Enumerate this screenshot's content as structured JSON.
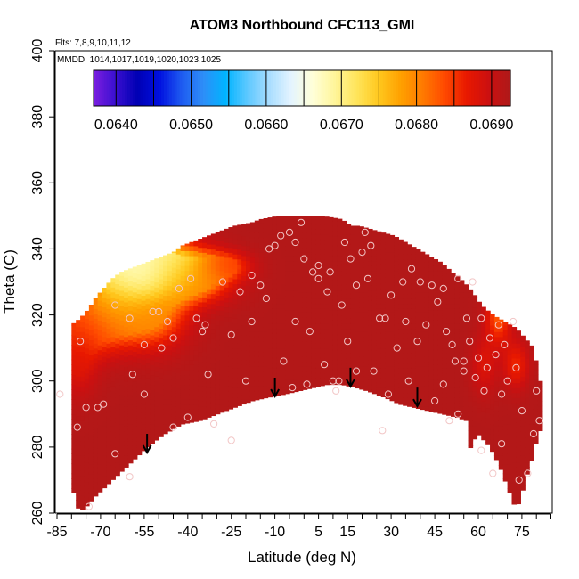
{
  "chart_data": {
    "type": "heatmap",
    "title": "ATOM3 Northbound CFC113_GMI",
    "subtitle_flights": "Flts: 7,8,9,10,11,12",
    "subtitle_dates": "MMDD: 1014,1017,1019,1020,1023,1025",
    "xlabel": "Latitude (deg N)",
    "ylabel": "Theta (C)",
    "xlim": [
      -85,
      85
    ],
    "ylim": [
      260,
      400
    ],
    "x_ticks": [
      "-85",
      "-70",
      "-55",
      "-40",
      "-25",
      "-10",
      "5",
      "15",
      "30",
      "45",
      "60",
      "75"
    ],
    "y_ticks": [
      "260",
      "280",
      "300",
      "320",
      "340",
      "360",
      "380",
      "400"
    ],
    "colorbar": {
      "ticks": [
        "0.0640",
        "0.0650",
        "0.0660",
        "0.0670",
        "0.0680",
        "0.0690"
      ],
      "range": [
        0.0637,
        0.06925
      ],
      "colors": [
        "#7B1FE0",
        "#3A0FD0",
        "#0000B4",
        "#0010E0",
        "#1E5AF0",
        "#2E8EF8",
        "#00B4FF",
        "#5CC8FF",
        "#A8DDFF",
        "#E4F4FF",
        "#FFFFD8",
        "#FFF59A",
        "#FFE45A",
        "#FFC81E",
        "#FFA000",
        "#FF7A00",
        "#FF4A00",
        "#E81800",
        "#CC1010",
        "#AE1A1A"
      ]
    },
    "surface": {
      "top_boundary": [
        [
          -80,
          317
        ],
        [
          -77,
          319
        ],
        [
          -74,
          322
        ],
        [
          -72,
          325
        ],
        [
          -69,
          328
        ],
        [
          -66,
          331
        ],
        [
          -63,
          333
        ],
        [
          -60,
          334
        ],
        [
          -57,
          335
        ],
        [
          -54,
          336
        ],
        [
          -51,
          337
        ],
        [
          -48,
          338
        ],
        [
          -45,
          339
        ],
        [
          -42,
          341
        ],
        [
          -39,
          342
        ],
        [
          -36,
          343
        ],
        [
          -33,
          344
        ],
        [
          -30,
          345
        ],
        [
          -27,
          346
        ],
        [
          -24,
          347
        ],
        [
          -21,
          347.5
        ],
        [
          -18,
          348
        ],
        [
          -15,
          349
        ],
        [
          -12,
          349.5
        ],
        [
          -9,
          350
        ],
        [
          -6,
          350
        ],
        [
          0,
          350
        ],
        [
          6,
          350
        ],
        [
          10,
          349.5
        ],
        [
          13,
          349
        ],
        [
          16,
          347
        ],
        [
          19,
          347
        ],
        [
          23,
          346
        ],
        [
          27,
          345
        ],
        [
          31,
          344
        ],
        [
          35,
          342
        ],
        [
          39,
          340
        ],
        [
          43,
          338
        ],
        [
          47,
          336
        ],
        [
          51,
          333
        ],
        [
          55,
          330
        ],
        [
          58,
          327
        ],
        [
          61,
          323
        ],
        [
          65,
          320
        ],
        [
          69,
          318
        ],
        [
          73,
          316
        ],
        [
          76,
          313
        ],
        [
          79,
          310
        ],
        [
          81,
          300
        ]
      ],
      "bottom_boundary": [
        [
          81,
          285
        ],
        [
          80,
          282
        ],
        [
          78,
          275
        ],
        [
          76,
          270
        ],
        [
          75,
          266
        ],
        [
          73,
          261
        ],
        [
          70,
          268
        ],
        [
          67,
          275
        ],
        [
          64,
          280
        ],
        [
          61,
          283
        ],
        [
          59,
          285
        ],
        [
          58,
          275
        ],
        [
          56,
          288
        ],
        [
          53,
          289
        ],
        [
          48,
          290
        ],
        [
          43,
          291
        ],
        [
          38,
          292
        ],
        [
          33,
          293
        ],
        [
          28,
          295
        ],
        [
          22,
          297
        ],
        [
          18,
          298
        ],
        [
          13,
          299
        ],
        [
          8,
          299
        ],
        [
          3,
          298
        ],
        [
          -2,
          297
        ],
        [
          -7,
          296
        ],
        [
          -13,
          295
        ],
        [
          -18,
          294
        ],
        [
          -24,
          292
        ],
        [
          -30,
          290
        ],
        [
          -36,
          288
        ],
        [
          -42,
          287
        ],
        [
          -48,
          284
        ],
        [
          -54,
          280
        ],
        [
          -60,
          275
        ],
        [
          -66,
          270
        ],
        [
          -72,
          265
        ],
        [
          -76,
          261
        ],
        [
          -79,
          262
        ],
        [
          -82,
          267
        ],
        [
          -84,
          275
        ],
        [
          -85,
          285
        ],
        [
          -84,
          300
        ],
        [
          -82,
          312
        ]
      ],
      "base_value": 0.0692,
      "features": [
        {
          "x": -47,
          "y": 334,
          "sx": 9,
          "sy": 5,
          "value": 0.0667
        },
        {
          "x": -57,
          "y": 331,
          "sx": 6,
          "sy": 4,
          "value": 0.0664
        },
        {
          "x": -63,
          "y": 325,
          "sx": 7,
          "sy": 6,
          "value": 0.0675
        },
        {
          "x": -52,
          "y": 321,
          "sx": 8,
          "sy": 7,
          "value": 0.068
        },
        {
          "x": -72,
          "y": 316,
          "sx": 9,
          "sy": 6,
          "value": 0.0684
        },
        {
          "x": -38,
          "y": 331,
          "sx": 9,
          "sy": 5,
          "value": 0.0682
        },
        {
          "x": -27,
          "y": 335,
          "sx": 6,
          "sy": 3,
          "value": 0.0685
        },
        {
          "x": -78,
          "y": 305,
          "sx": 5,
          "sy": 7,
          "value": 0.0688
        },
        {
          "x": 67,
          "y": 320,
          "sx": 3,
          "sy": 6,
          "value": 0.0683
        },
        {
          "x": 73,
          "y": 305,
          "sx": 3,
          "sy": 5,
          "value": 0.0686
        },
        {
          "x": 62,
          "y": 305,
          "sx": 3,
          "sy": 6,
          "value": 0.0688
        }
      ]
    },
    "sample_points": [
      [
        -84,
        296
      ],
      [
        -78,
        286
      ],
      [
        -77,
        312
      ],
      [
        -75,
        292
      ],
      [
        -74,
        262
      ],
      [
        -71,
        292
      ],
      [
        -69,
        293
      ],
      [
        -65,
        323
      ],
      [
        -60,
        319
      ],
      [
        -59,
        302
      ],
      [
        -55,
        311
      ],
      [
        -55,
        296
      ],
      [
        -52,
        321
      ],
      [
        -50,
        321
      ],
      [
        -49,
        310
      ],
      [
        -47,
        318
      ],
      [
        -45,
        313
      ],
      [
        -43,
        328
      ],
      [
        -39,
        331
      ],
      [
        -37,
        319
      ],
      [
        -35,
        315
      ],
      [
        -34,
        317
      ],
      [
        -31,
        287
      ],
      [
        -28,
        330
      ],
      [
        -25,
        314
      ],
      [
        -22,
        327
      ],
      [
        -18,
        332
      ],
      [
        -15,
        329
      ],
      [
        -13,
        325
      ],
      [
        -12,
        340
      ],
      [
        -10,
        341
      ],
      [
        -8,
        344
      ],
      [
        -5,
        345
      ],
      [
        -3,
        342
      ],
      [
        -1,
        348
      ],
      [
        0,
        337
      ],
      [
        2,
        315
      ],
      [
        3,
        333
      ],
      [
        5,
        331
      ],
      [
        8,
        327
      ],
      [
        9,
        333
      ],
      [
        10,
        300
      ],
      [
        11,
        297
      ],
      [
        12,
        300
      ],
      [
        13,
        323
      ],
      [
        15,
        312
      ],
      [
        16,
        337
      ],
      [
        18,
        329
      ],
      [
        20,
        339
      ],
      [
        21,
        345
      ],
      [
        23,
        341
      ],
      [
        24,
        303
      ],
      [
        26,
        319
      ],
      [
        28,
        319
      ],
      [
        30,
        326
      ],
      [
        32,
        310
      ],
      [
        34,
        330
      ],
      [
        35,
        318
      ],
      [
        36,
        300
      ],
      [
        39,
        312
      ],
      [
        40,
        330
      ],
      [
        42,
        317
      ],
      [
        44,
        329
      ],
      [
        46,
        324
      ],
      [
        48,
        328
      ],
      [
        48,
        299
      ],
      [
        49,
        315
      ],
      [
        51,
        311
      ],
      [
        52,
        306
      ],
      [
        53,
        290
      ],
      [
        55,
        306
      ],
      [
        56,
        319
      ],
      [
        57,
        312
      ],
      [
        59,
        301
      ],
      [
        60,
        307
      ],
      [
        61,
        319
      ],
      [
        62,
        297
      ],
      [
        63,
        304
      ],
      [
        64,
        313
      ],
      [
        66,
        308
      ],
      [
        67,
        317
      ],
      [
        68,
        296
      ],
      [
        69,
        311
      ],
      [
        70,
        300
      ],
      [
        72,
        318
      ],
      [
        73,
        304
      ],
      [
        75,
        291
      ],
      [
        77,
        272
      ],
      [
        79,
        284
      ],
      [
        80,
        297
      ],
      [
        81,
        288
      ],
      [
        -20,
        300
      ],
      [
        -7,
        306
      ],
      [
        -25,
        282
      ],
      [
        -40,
        289
      ],
      [
        -45,
        286
      ],
      [
        -65,
        278
      ],
      [
        -60,
        271
      ],
      [
        -75,
        256
      ],
      [
        50,
        288
      ],
      [
        61,
        279
      ],
      [
        65,
        272
      ],
      [
        74,
        270
      ],
      [
        -4,
        298
      ],
      [
        1,
        299
      ],
      [
        7,
        305
      ],
      [
        18,
        303
      ],
      [
        29,
        296
      ],
      [
        55,
        303
      ],
      [
        68,
        281
      ],
      [
        45,
        294
      ],
      [
        -33,
        302
      ],
      [
        5,
        335
      ],
      [
        14,
        342
      ],
      [
        22,
        331
      ],
      [
        37,
        334
      ],
      [
        53,
        331
      ],
      [
        58,
        330
      ],
      [
        -3,
        318
      ],
      [
        -18,
        318
      ],
      [
        27,
        285
      ]
    ],
    "arrows": [
      [
        -54,
        284
      ],
      [
        -10,
        301
      ],
      [
        16,
        304
      ],
      [
        39,
        298
      ]
    ]
  }
}
